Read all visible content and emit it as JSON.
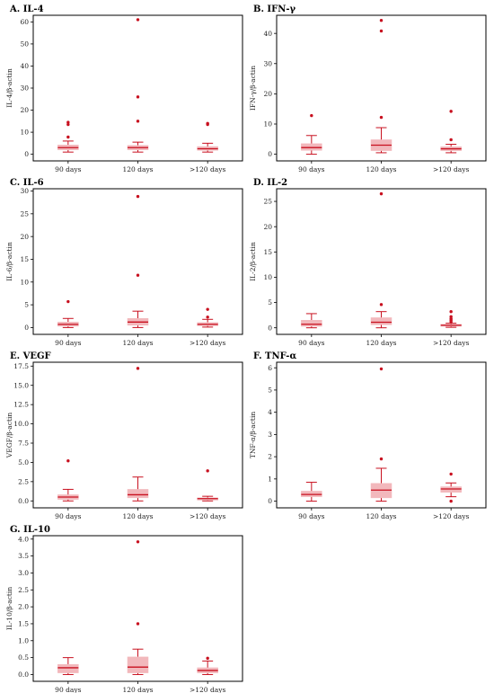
{
  "colors": {
    "box_fill": "#f2b8bc",
    "box_line": "#c8101f",
    "outlier": "#c8101f",
    "frame": "#000000"
  },
  "chart_data": [
    {
      "type": "box",
      "title": "A. IL-4",
      "ylabel": "IL-4/β-actin",
      "categories": [
        "90 days",
        "120 days",
        ">120 days"
      ],
      "ylim": [
        -3,
        63
      ],
      "yticks": [
        0,
        10,
        20,
        30,
        40,
        50,
        60
      ],
      "ytick_labels": [
        "0",
        "10",
        "20",
        "30",
        "40",
        "50",
        "60"
      ],
      "boxes": [
        {
          "whislo": 1.0,
          "q1": 2.0,
          "med": 3.0,
          "q3": 4.2,
          "whishi": 6.0,
          "fliers": [
            7.8,
            13.5,
            14.5
          ]
        },
        {
          "whislo": 1.0,
          "q1": 2.0,
          "med": 3.0,
          "q3": 4.0,
          "whishi": 5.5,
          "fliers": [
            15.0,
            26.0,
            61.0
          ]
        },
        {
          "whislo": 1.0,
          "q1": 1.8,
          "med": 2.5,
          "q3": 3.5,
          "whishi": 5.0,
          "fliers": [
            13.5,
            14.0
          ]
        }
      ]
    },
    {
      "type": "box",
      "title": "B. IFN-γ",
      "ylabel": "IFN-γ/β-actin",
      "categories": [
        "90 days",
        "120 days",
        ">120 days"
      ],
      "ylim": [
        -2.2,
        46
      ],
      "yticks": [
        0,
        10,
        20,
        30,
        40
      ],
      "ytick_labels": [
        "0",
        "10",
        "20",
        "30",
        "40"
      ],
      "boxes": [
        {
          "whislo": 0.0,
          "q1": 1.3,
          "med": 2.2,
          "q3": 3.5,
          "whishi": 6.2,
          "fliers": [
            12.8
          ]
        },
        {
          "whislo": 0.5,
          "q1": 1.2,
          "med": 3.0,
          "q3": 4.8,
          "whishi": 8.8,
          "fliers": [
            12.2,
            40.8,
            44.3
          ]
        },
        {
          "whislo": 0.5,
          "q1": 1.2,
          "med": 1.8,
          "q3": 2.5,
          "whishi": 3.3,
          "fliers": [
            4.8,
            14.2
          ]
        }
      ]
    },
    {
      "type": "box",
      "title": "C. IL-6",
      "ylabel": "IL-6/β-actin",
      "categories": [
        "90 days",
        "120 days",
        ">120 days"
      ],
      "ylim": [
        -1.5,
        30.5
      ],
      "yticks": [
        0,
        5,
        10,
        15,
        20,
        25,
        30
      ],
      "ytick_labels": [
        "0",
        "5",
        "10",
        "15",
        "20",
        "25",
        "30"
      ],
      "boxes": [
        {
          "whislo": 0.0,
          "q1": 0.3,
          "med": 0.7,
          "q3": 1.2,
          "whishi": 2.0,
          "fliers": [
            5.7
          ]
        },
        {
          "whislo": 0.0,
          "q1": 0.5,
          "med": 1.2,
          "q3": 2.0,
          "whishi": 3.6,
          "fliers": [
            11.5,
            28.8
          ]
        },
        {
          "whislo": 0.1,
          "q1": 0.4,
          "med": 0.7,
          "q3": 1.1,
          "whishi": 1.8,
          "fliers": [
            2.3,
            4.0
          ]
        }
      ]
    },
    {
      "type": "box",
      "title": "D. IL-2",
      "ylabel": "IL-2/β-actin",
      "categories": [
        "90 days",
        "120 days",
        ">120 days"
      ],
      "ylim": [
        -1.3,
        27.5
      ],
      "yticks": [
        0,
        5,
        10,
        15,
        20,
        25
      ],
      "ytick_labels": [
        "0",
        "5",
        "10",
        "15",
        "20",
        "25"
      ],
      "boxes": [
        {
          "whislo": 0.0,
          "q1": 0.3,
          "med": 0.7,
          "q3": 1.5,
          "whishi": 2.8,
          "fliers": []
        },
        {
          "whislo": 0.0,
          "q1": 0.6,
          "med": 1.1,
          "q3": 2.0,
          "whishi": 3.2,
          "fliers": [
            4.6,
            26.5
          ]
        },
        {
          "whislo": 0.1,
          "q1": 0.3,
          "med": 0.5,
          "q3": 0.7,
          "whishi": 0.9,
          "fliers": [
            1.2,
            1.5,
            1.8,
            2.2,
            3.2
          ]
        }
      ]
    },
    {
      "type": "box",
      "title": "E. VEGF",
      "ylabel": "VEGF/β-actin",
      "categories": [
        "90 days",
        "120 days",
        ">120 days"
      ],
      "ylim": [
        -0.9,
        18.0
      ],
      "yticks": [
        0.0,
        2.5,
        5.0,
        7.5,
        10.0,
        12.5,
        15.0,
        17.5
      ],
      "ytick_labels": [
        "0.0",
        "2.5",
        "5.0",
        "7.5",
        "10.0",
        "12.5",
        "15.0",
        "17.5"
      ],
      "boxes": [
        {
          "whislo": 0.0,
          "q1": 0.2,
          "med": 0.5,
          "q3": 0.8,
          "whishi": 1.5,
          "fliers": [
            5.2
          ]
        },
        {
          "whislo": 0.0,
          "q1": 0.4,
          "med": 0.8,
          "q3": 1.5,
          "whishi": 3.1,
          "fliers": [
            17.2
          ]
        },
        {
          "whislo": 0.0,
          "q1": 0.1,
          "med": 0.3,
          "q3": 0.4,
          "whishi": 0.6,
          "fliers": [
            3.9
          ]
        }
      ]
    },
    {
      "type": "box",
      "title": "F. TNF-α",
      "ylabel": "TNF-α/β-actin",
      "categories": [
        "90 days",
        "120 days",
        ">120 days"
      ],
      "ylim": [
        -0.3,
        6.25
      ],
      "yticks": [
        0,
        1,
        2,
        3,
        4,
        5,
        6
      ],
      "ytick_labels": [
        "0",
        "1",
        "2",
        "3",
        "4",
        "5",
        "6"
      ],
      "boxes": [
        {
          "whislo": 0.0,
          "q1": 0.2,
          "med": 0.3,
          "q3": 0.45,
          "whishi": 0.85,
          "fliers": []
        },
        {
          "whislo": 0.0,
          "q1": 0.15,
          "med": 0.5,
          "q3": 0.8,
          "whishi": 1.48,
          "fliers": [
            1.9,
            5.95
          ]
        },
        {
          "whislo": 0.2,
          "q1": 0.4,
          "med": 0.55,
          "q3": 0.65,
          "whishi": 0.82,
          "fliers": [
            0.0,
            1.22
          ]
        }
      ]
    },
    {
      "type": "box",
      "title": "G. IL-10",
      "ylabel": "IL-10/β-actin",
      "categories": [
        "90 days",
        "120 days",
        ">120 days"
      ],
      "ylim": [
        -0.2,
        4.1
      ],
      "yticks": [
        0.0,
        0.5,
        1.0,
        1.5,
        2.0,
        2.5,
        3.0,
        3.5,
        4.0
      ],
      "ytick_labels": [
        "0.0",
        "0.5",
        "1.0",
        "1.5",
        "2.0",
        "2.5",
        "3.0",
        "3.5",
        "4.0"
      ],
      "boxes": [
        {
          "whislo": 0.0,
          "q1": 0.05,
          "med": 0.2,
          "q3": 0.3,
          "whishi": 0.5,
          "fliers": []
        },
        {
          "whislo": 0.0,
          "q1": 0.05,
          "med": 0.22,
          "q3": 0.52,
          "whishi": 0.75,
          "fliers": [
            1.5,
            3.92
          ]
        },
        {
          "whislo": 0.0,
          "q1": 0.05,
          "med": 0.12,
          "q3": 0.2,
          "whishi": 0.4,
          "fliers": [
            0.48
          ]
        }
      ]
    }
  ]
}
